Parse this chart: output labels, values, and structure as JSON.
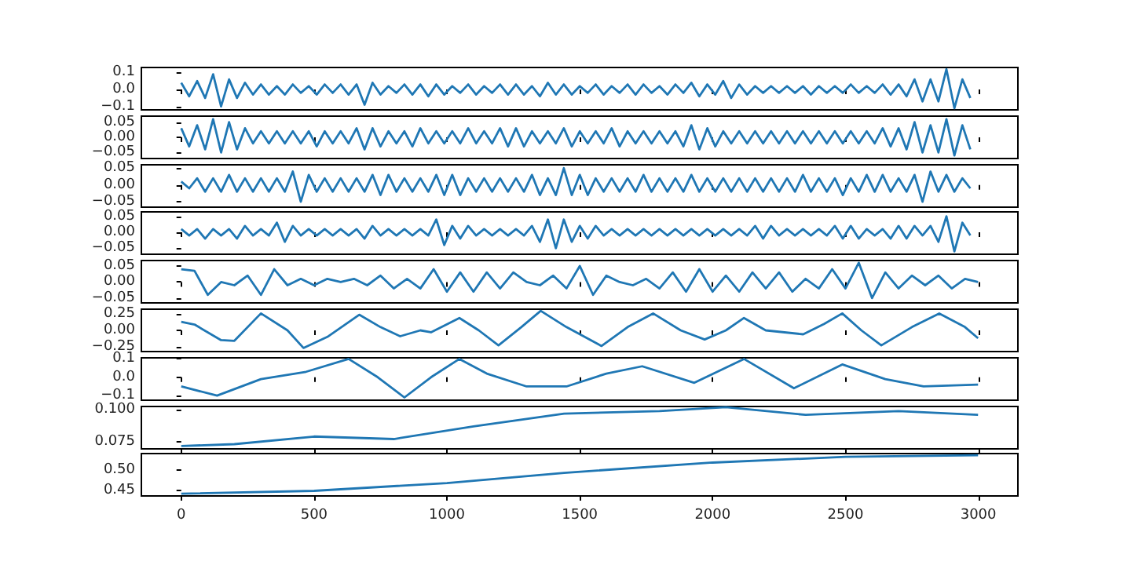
{
  "chart_data": [
    {
      "type": "line",
      "tick_labels": "y",
      "xlim": [
        -150,
        3149
      ],
      "xticks": [
        0,
        500,
        1000,
        1500,
        2000,
        2500,
        3000
      ],
      "ylim": [
        -0.12,
        0.13
      ],
      "yticks": [
        {
          "value": -0.1,
          "label": "−0.1"
        },
        {
          "value": 0,
          "label": "0.0"
        },
        0.1
      ],
      "x": [
        0,
        30,
        60,
        90,
        120,
        150,
        180,
        210,
        240,
        270,
        300,
        330,
        360,
        390,
        420,
        450,
        480,
        510,
        540,
        570,
        600,
        630,
        660,
        690,
        720,
        750,
        780,
        810,
        840,
        870,
        900,
        930,
        960,
        990,
        1020,
        1050,
        1080,
        1110,
        1140,
        1170,
        1200,
        1230,
        1260,
        1290,
        1320,
        1350,
        1380,
        1410,
        1440,
        1470,
        1500,
        1530,
        1560,
        1590,
        1620,
        1650,
        1680,
        1710,
        1740,
        1770,
        1800,
        1830,
        1860,
        1890,
        1920,
        1950,
        1980,
        2010,
        2040,
        2070,
        2100,
        2130,
        2160,
        2190,
        2220,
        2250,
        2280,
        2310,
        2340,
        2370,
        2400,
        2430,
        2460,
        2490,
        2520,
        2550,
        2580,
        2610,
        2640,
        2670,
        2700,
        2730,
        2760,
        2790,
        2820,
        2850,
        2880,
        2910,
        2940,
        2970
      ],
      "series": [
        {
          "color": "#1f77b4",
          "values": [
            0.04,
            -0.04,
            0.05,
            -0.05,
            0.09,
            -0.1,
            0.06,
            -0.05,
            0.04,
            -0.03,
            0.03,
            -0.03,
            0.02,
            -0.03,
            0.03,
            -0.02,
            0.02,
            -0.03,
            0.03,
            -0.02,
            0.03,
            -0.03,
            0.03,
            -0.09,
            0.04,
            -0.03,
            0.02,
            -0.02,
            0.03,
            -0.03,
            0.03,
            -0.04,
            0.03,
            -0.03,
            0.02,
            -0.02,
            0.03,
            -0.03,
            0.02,
            -0.02,
            0.03,
            -0.03,
            0.03,
            -0.03,
            0.02,
            -0.04,
            0.04,
            -0.03,
            0.03,
            -0.03,
            0.02,
            -0.02,
            0.03,
            -0.03,
            0.02,
            -0.02,
            0.03,
            -0.03,
            0.03,
            -0.02,
            0.02,
            -0.03,
            0.03,
            -0.02,
            0.04,
            -0.04,
            0.03,
            -0.03,
            0.05,
            -0.05,
            0.03,
            -0.03,
            0.02,
            -0.02,
            0.02,
            -0.02,
            0.02,
            -0.02,
            0.02,
            -0.03,
            0.02,
            -0.02,
            0.02,
            -0.02,
            0.03,
            -0.02,
            0.02,
            -0.02,
            0.03,
            -0.03,
            0.03,
            -0.04,
            0.06,
            -0.07,
            0.06,
            -0.07,
            0.12,
            -0.11,
            0.06,
            -0.05
          ]
        }
      ]
    },
    {
      "type": "line",
      "tick_labels": "y",
      "xlim": [
        -150,
        3149
      ],
      "xticks": [
        0,
        500,
        1000,
        1500,
        2000,
        2500,
        3000
      ],
      "ylim": [
        -0.07,
        0.07
      ],
      "yticks": [
        {
          "value": -0.05,
          "label": "−0.05"
        },
        {
          "value": 0,
          "label": "0.00"
        },
        0.05
      ],
      "x": [
        0,
        30,
        60,
        90,
        120,
        150,
        180,
        210,
        240,
        270,
        300,
        330,
        360,
        390,
        420,
        450,
        480,
        510,
        540,
        570,
        600,
        630,
        660,
        690,
        720,
        750,
        780,
        810,
        840,
        870,
        900,
        930,
        960,
        990,
        1020,
        1050,
        1080,
        1110,
        1140,
        1170,
        1200,
        1230,
        1260,
        1290,
        1320,
        1350,
        1380,
        1410,
        1440,
        1470,
        1500,
        1530,
        1560,
        1590,
        1620,
        1650,
        1680,
        1710,
        1740,
        1770,
        1800,
        1830,
        1860,
        1890,
        1920,
        1950,
        1980,
        2010,
        2040,
        2070,
        2100,
        2130,
        2160,
        2190,
        2220,
        2250,
        2280,
        2310,
        2340,
        2370,
        2400,
        2430,
        2460,
        2490,
        2520,
        2550,
        2580,
        2610,
        2640,
        2670,
        2700,
        2730,
        2760,
        2790,
        2820,
        2850,
        2880,
        2910,
        2940,
        2970
      ],
      "series": [
        {
          "color": "#1f77b4",
          "values": [
            0.03,
            -0.03,
            0.04,
            -0.04,
            0.06,
            -0.05,
            0.05,
            -0.04,
            0.03,
            -0.02,
            0.02,
            -0.02,
            0.02,
            -0.02,
            0.02,
            -0.02,
            0.02,
            -0.03,
            0.02,
            -0.02,
            0.02,
            -0.02,
            0.03,
            -0.04,
            0.03,
            -0.03,
            0.02,
            -0.02,
            0.02,
            -0.03,
            0.03,
            -0.02,
            0.02,
            -0.02,
            0.02,
            -0.02,
            0.03,
            -0.02,
            0.02,
            -0.02,
            0.03,
            -0.03,
            0.03,
            -0.03,
            0.02,
            -0.02,
            0.02,
            -0.02,
            0.03,
            -0.03,
            0.02,
            -0.02,
            0.02,
            -0.02,
            0.03,
            -0.03,
            0.02,
            -0.02,
            0.02,
            -0.02,
            0.02,
            -0.02,
            0.02,
            -0.03,
            0.04,
            -0.04,
            0.03,
            -0.03,
            0.02,
            -0.02,
            0.02,
            -0.02,
            0.02,
            -0.02,
            0.02,
            -0.02,
            0.02,
            -0.02,
            0.02,
            -0.02,
            0.02,
            -0.02,
            0.02,
            -0.02,
            0.02,
            -0.02,
            0.02,
            -0.02,
            0.03,
            -0.03,
            0.03,
            -0.04,
            0.05,
            -0.05,
            0.04,
            -0.05,
            0.06,
            -0.06,
            0.04,
            -0.04
          ]
        }
      ]
    },
    {
      "type": "line",
      "tick_labels": "y",
      "xlim": [
        -150,
        3149
      ],
      "xticks": [
        0,
        500,
        1000,
        1500,
        2000,
        2500,
        3000
      ],
      "ylim": [
        -0.066,
        0.06
      ],
      "yticks": [
        {
          "value": -0.05,
          "label": "−0.05"
        },
        {
          "value": 0,
          "label": "0.00"
        },
        0.05
      ],
      "x": [
        0,
        30,
        60,
        90,
        120,
        150,
        180,
        210,
        240,
        270,
        300,
        330,
        360,
        390,
        420,
        450,
        480,
        510,
        540,
        570,
        600,
        630,
        660,
        690,
        720,
        750,
        780,
        810,
        840,
        870,
        900,
        930,
        960,
        990,
        1020,
        1050,
        1080,
        1110,
        1140,
        1170,
        1200,
        1230,
        1260,
        1290,
        1320,
        1350,
        1380,
        1410,
        1440,
        1470,
        1500,
        1530,
        1560,
        1590,
        1620,
        1650,
        1680,
        1710,
        1740,
        1770,
        1800,
        1830,
        1860,
        1890,
        1920,
        1950,
        1980,
        2010,
        2040,
        2070,
        2100,
        2130,
        2160,
        2190,
        2220,
        2250,
        2280,
        2310,
        2340,
        2370,
        2400,
        2430,
        2460,
        2490,
        2520,
        2550,
        2580,
        2610,
        2640,
        2670,
        2700,
        2730,
        2760,
        2790,
        2820,
        2850,
        2880,
        2910,
        2940,
        2970
      ],
      "series": [
        {
          "color": "#1f77b4",
          "values": [
            0.01,
            -0.01,
            0.02,
            -0.02,
            0.02,
            -0.02,
            0.03,
            -0.02,
            0.02,
            -0.02,
            0.02,
            -0.02,
            0.02,
            -0.02,
            0.04,
            -0.05,
            0.03,
            -0.02,
            0.02,
            -0.02,
            0.02,
            -0.02,
            0.02,
            -0.02,
            0.03,
            -0.03,
            0.03,
            -0.02,
            0.02,
            -0.02,
            0.02,
            -0.02,
            0.03,
            -0.03,
            0.03,
            -0.03,
            0.02,
            -0.02,
            0.02,
            -0.02,
            0.02,
            -0.02,
            0.02,
            -0.02,
            0.03,
            -0.03,
            0.02,
            -0.03,
            0.05,
            -0.03,
            0.03,
            -0.03,
            0.02,
            -0.02,
            0.02,
            -0.02,
            0.02,
            -0.02,
            0.03,
            -0.02,
            0.02,
            -0.02,
            0.02,
            -0.02,
            0.03,
            -0.02,
            0.02,
            -0.02,
            0.02,
            -0.02,
            0.02,
            -0.02,
            0.02,
            -0.02,
            0.02,
            -0.02,
            0.02,
            -0.02,
            0.03,
            -0.02,
            0.02,
            -0.02,
            0.02,
            -0.03,
            0.02,
            -0.02,
            0.03,
            -0.02,
            0.03,
            -0.02,
            0.02,
            -0.02,
            0.03,
            -0.05,
            0.04,
            -0.02,
            0.03,
            -0.02,
            0.02,
            -0.01
          ]
        }
      ]
    },
    {
      "type": "line",
      "tick_labels": "y",
      "xlim": [
        -150,
        3149
      ],
      "xticks": [
        0,
        500,
        1000,
        1500,
        2000,
        2500,
        3000
      ],
      "ylim": [
        -0.069,
        0.064
      ],
      "yticks": [
        {
          "value": -0.05,
          "label": "−0.05"
        },
        {
          "value": 0,
          "label": "0.00"
        },
        0.05
      ],
      "x": [
        0,
        30,
        60,
        90,
        120,
        150,
        180,
        210,
        240,
        270,
        300,
        330,
        360,
        390,
        420,
        450,
        480,
        510,
        540,
        570,
        600,
        630,
        660,
        690,
        720,
        750,
        780,
        810,
        840,
        870,
        900,
        930,
        960,
        990,
        1020,
        1050,
        1080,
        1110,
        1140,
        1170,
        1200,
        1230,
        1260,
        1290,
        1320,
        1350,
        1380,
        1410,
        1440,
        1470,
        1500,
        1530,
        1560,
        1590,
        1620,
        1650,
        1680,
        1710,
        1740,
        1770,
        1800,
        1830,
        1860,
        1890,
        1920,
        1950,
        1980,
        2010,
        2040,
        2070,
        2100,
        2130,
        2160,
        2190,
        2220,
        2250,
        2280,
        2310,
        2340,
        2370,
        2400,
        2430,
        2460,
        2490,
        2520,
        2550,
        2580,
        2610,
        2640,
        2670,
        2700,
        2730,
        2760,
        2790,
        2820,
        2850,
        2880,
        2910,
        2940,
        2970
      ],
      "series": [
        {
          "color": "#1f77b4",
          "values": [
            0.01,
            -0.01,
            0.01,
            -0.02,
            0.01,
            -0.01,
            0.01,
            -0.02,
            0.02,
            -0.01,
            0.01,
            -0.01,
            0.03,
            -0.03,
            0.02,
            -0.01,
            0.01,
            -0.01,
            0.01,
            -0.01,
            0.01,
            -0.01,
            0.01,
            -0.02,
            0.02,
            -0.01,
            0.01,
            -0.01,
            0.01,
            -0.01,
            0.01,
            -0.01,
            0.04,
            -0.04,
            0.02,
            -0.02,
            0.02,
            -0.01,
            0.01,
            -0.01,
            0.01,
            -0.01,
            0.01,
            -0.01,
            0.02,
            -0.03,
            0.04,
            -0.05,
            0.04,
            -0.03,
            0.02,
            -0.02,
            0.02,
            -0.01,
            0.01,
            -0.01,
            0.01,
            -0.01,
            0.01,
            -0.01,
            0.01,
            -0.01,
            0.01,
            -0.01,
            0.01,
            -0.01,
            0.01,
            -0.01,
            0.01,
            -0.01,
            0.01,
            -0.01,
            0.02,
            -0.02,
            0.02,
            -0.01,
            0.01,
            -0.01,
            0.01,
            -0.01,
            0.01,
            -0.01,
            0.02,
            -0.02,
            0.02,
            -0.02,
            0.01,
            -0.01,
            0.01,
            -0.02,
            0.02,
            -0.02,
            0.02,
            -0.01,
            0.02,
            -0.03,
            0.05,
            -0.06,
            0.03,
            -0.01
          ]
        }
      ]
    },
    {
      "type": "line",
      "tick_labels": "y",
      "xlim": [
        -150,
        3149
      ],
      "xticks": [
        0,
        500,
        1000,
        1500,
        2000,
        2500,
        3000
      ],
      "ylim": [
        -0.065,
        0.067
      ],
      "yticks": [
        {
          "value": -0.05,
          "label": "−0.05"
        },
        {
          "value": 0,
          "label": "0.00"
        },
        0.05
      ],
      "x": [
        0,
        50,
        100,
        150,
        200,
        250,
        300,
        350,
        400,
        450,
        500,
        550,
        600,
        650,
        700,
        750,
        800,
        850,
        900,
        950,
        1000,
        1050,
        1100,
        1150,
        1200,
        1250,
        1300,
        1350,
        1400,
        1450,
        1500,
        1550,
        1600,
        1650,
        1700,
        1750,
        1800,
        1850,
        1900,
        1950,
        2000,
        2050,
        2100,
        2150,
        2200,
        2250,
        2300,
        2350,
        2400,
        2450,
        2500,
        2550,
        2600,
        2650,
        2700,
        2750,
        2800,
        2850,
        2900,
        2950,
        2999
      ],
      "series": [
        {
          "color": "#1f77b4",
          "values": [
            0.04,
            0.035,
            -0.04,
            0.0,
            -0.01,
            0.02,
            -0.04,
            0.04,
            -0.01,
            0.01,
            -0.01,
            0.01,
            0.0,
            0.01,
            -0.01,
            0.02,
            -0.02,
            0.01,
            -0.02,
            0.04,
            -0.03,
            0.03,
            -0.03,
            0.03,
            -0.02,
            0.03,
            0.0,
            -0.01,
            0.02,
            -0.02,
            0.05,
            -0.04,
            0.02,
            0.0,
            -0.01,
            0.01,
            -0.02,
            0.03,
            -0.03,
            0.04,
            -0.03,
            0.02,
            -0.03,
            0.03,
            -0.02,
            0.03,
            -0.03,
            0.01,
            -0.02,
            0.04,
            -0.02,
            0.06,
            -0.05,
            0.03,
            -0.02,
            0.02,
            -0.01,
            0.02,
            -0.02,
            0.01,
            0.0
          ]
        }
      ]
    },
    {
      "type": "line",
      "tick_labels": "y",
      "xlim": [
        -150,
        3149
      ],
      "xticks": [
        0,
        500,
        1000,
        1500,
        2000,
        2500,
        3000
      ],
      "ylim": [
        -0.325,
        0.325
      ],
      "yticks": [
        {
          "value": -0.25,
          "label": "−0.25"
        },
        {
          "value": 0,
          "label": "0.00"
        },
        0.25
      ],
      "x": [
        0,
        50,
        150,
        200,
        300,
        400,
        460,
        550,
        670,
        750,
        824,
        900,
        940,
        1047,
        1120,
        1194,
        1280,
        1353,
        1450,
        1582,
        1680,
        1776,
        1880,
        1970,
        2050,
        2118,
        2200,
        2341,
        2420,
        2488,
        2560,
        2635,
        2750,
        2853,
        2950,
        2999
      ],
      "series": [
        {
          "color": "#1f77b4",
          "values": [
            0.13,
            0.09,
            -0.15,
            -0.16,
            0.26,
            0.0,
            -0.27,
            -0.1,
            0.24,
            0.05,
            -0.09,
            0.0,
            -0.03,
            0.19,
            0.0,
            -0.23,
            0.05,
            0.3,
            0.05,
            -0.24,
            0.05,
            0.26,
            0.0,
            -0.14,
            0.0,
            0.19,
            0.0,
            -0.06,
            0.1,
            0.26,
            0.0,
            -0.23,
            0.05,
            0.26,
            0.05,
            -0.12
          ]
        }
      ]
    },
    {
      "type": "line",
      "tick_labels": "y",
      "xlim": [
        -150,
        3149
      ],
      "xticks": [
        0,
        500,
        1000,
        1500,
        2000,
        2500,
        3000
      ],
      "ylim": [
        -0.125,
        0.106
      ],
      "yticks": [
        {
          "value": -0.1,
          "label": "−0.1"
        },
        {
          "value": 0,
          "label": "0.0"
        },
        0.1
      ],
      "x": [
        0,
        135,
        300,
        470,
        630,
        740,
        840,
        940,
        1047,
        1150,
        1300,
        1450,
        1600,
        1735,
        1931,
        2118,
        2306,
        2488,
        2650,
        2794,
        2999
      ],
      "series": [
        {
          "color": "#1f77b4",
          "values": [
            -0.05,
            -0.1,
            -0.01,
            0.03,
            0.1,
            0.0,
            -0.11,
            0.0,
            0.1,
            0.02,
            -0.05,
            -0.05,
            0.02,
            0.06,
            -0.03,
            0.1,
            -0.06,
            0.07,
            -0.01,
            -0.05,
            -0.04
          ]
        }
      ]
    },
    {
      "type": "line",
      "tick_labels": "y",
      "xlim": [
        -150,
        3149
      ],
      "xticks": [
        0,
        500,
        1000,
        1500,
        2000,
        2500,
        3000
      ],
      "ylim": [
        0.0693,
        0.1026
      ],
      "yticks": [
        0.075,
        {
          "value": 0.1,
          "label": "0.100"
        }
      ],
      "x": [
        0,
        200,
        500,
        800,
        1100,
        1441,
        1800,
        2050,
        2350,
        2700,
        2999
      ],
      "series": [
        {
          "color": "#1f77b4",
          "values": [
            0.0715,
            0.073,
            0.079,
            0.077,
            0.087,
            0.097,
            0.099,
            0.102,
            0.096,
            0.099,
            0.096
          ]
        }
      ]
    },
    {
      "type": "line",
      "xlim": [
        -150,
        3149
      ],
      "xticks": [
        0,
        500,
        1000,
        1500,
        2000,
        2500,
        3000
      ],
      "ylim": [
        0.4365,
        0.54
      ],
      "yticks": [
        0.45,
        {
          "value": 0.5,
          "label": "0.50"
        }
      ],
      "x": [
        0,
        500,
        1000,
        1441,
        2000,
        2500,
        2999
      ],
      "series": [
        {
          "color": "#1f77b4",
          "values": [
            0.442,
            0.449,
            0.468,
            0.493,
            0.518,
            0.532,
            0.536
          ]
        }
      ]
    }
  ]
}
